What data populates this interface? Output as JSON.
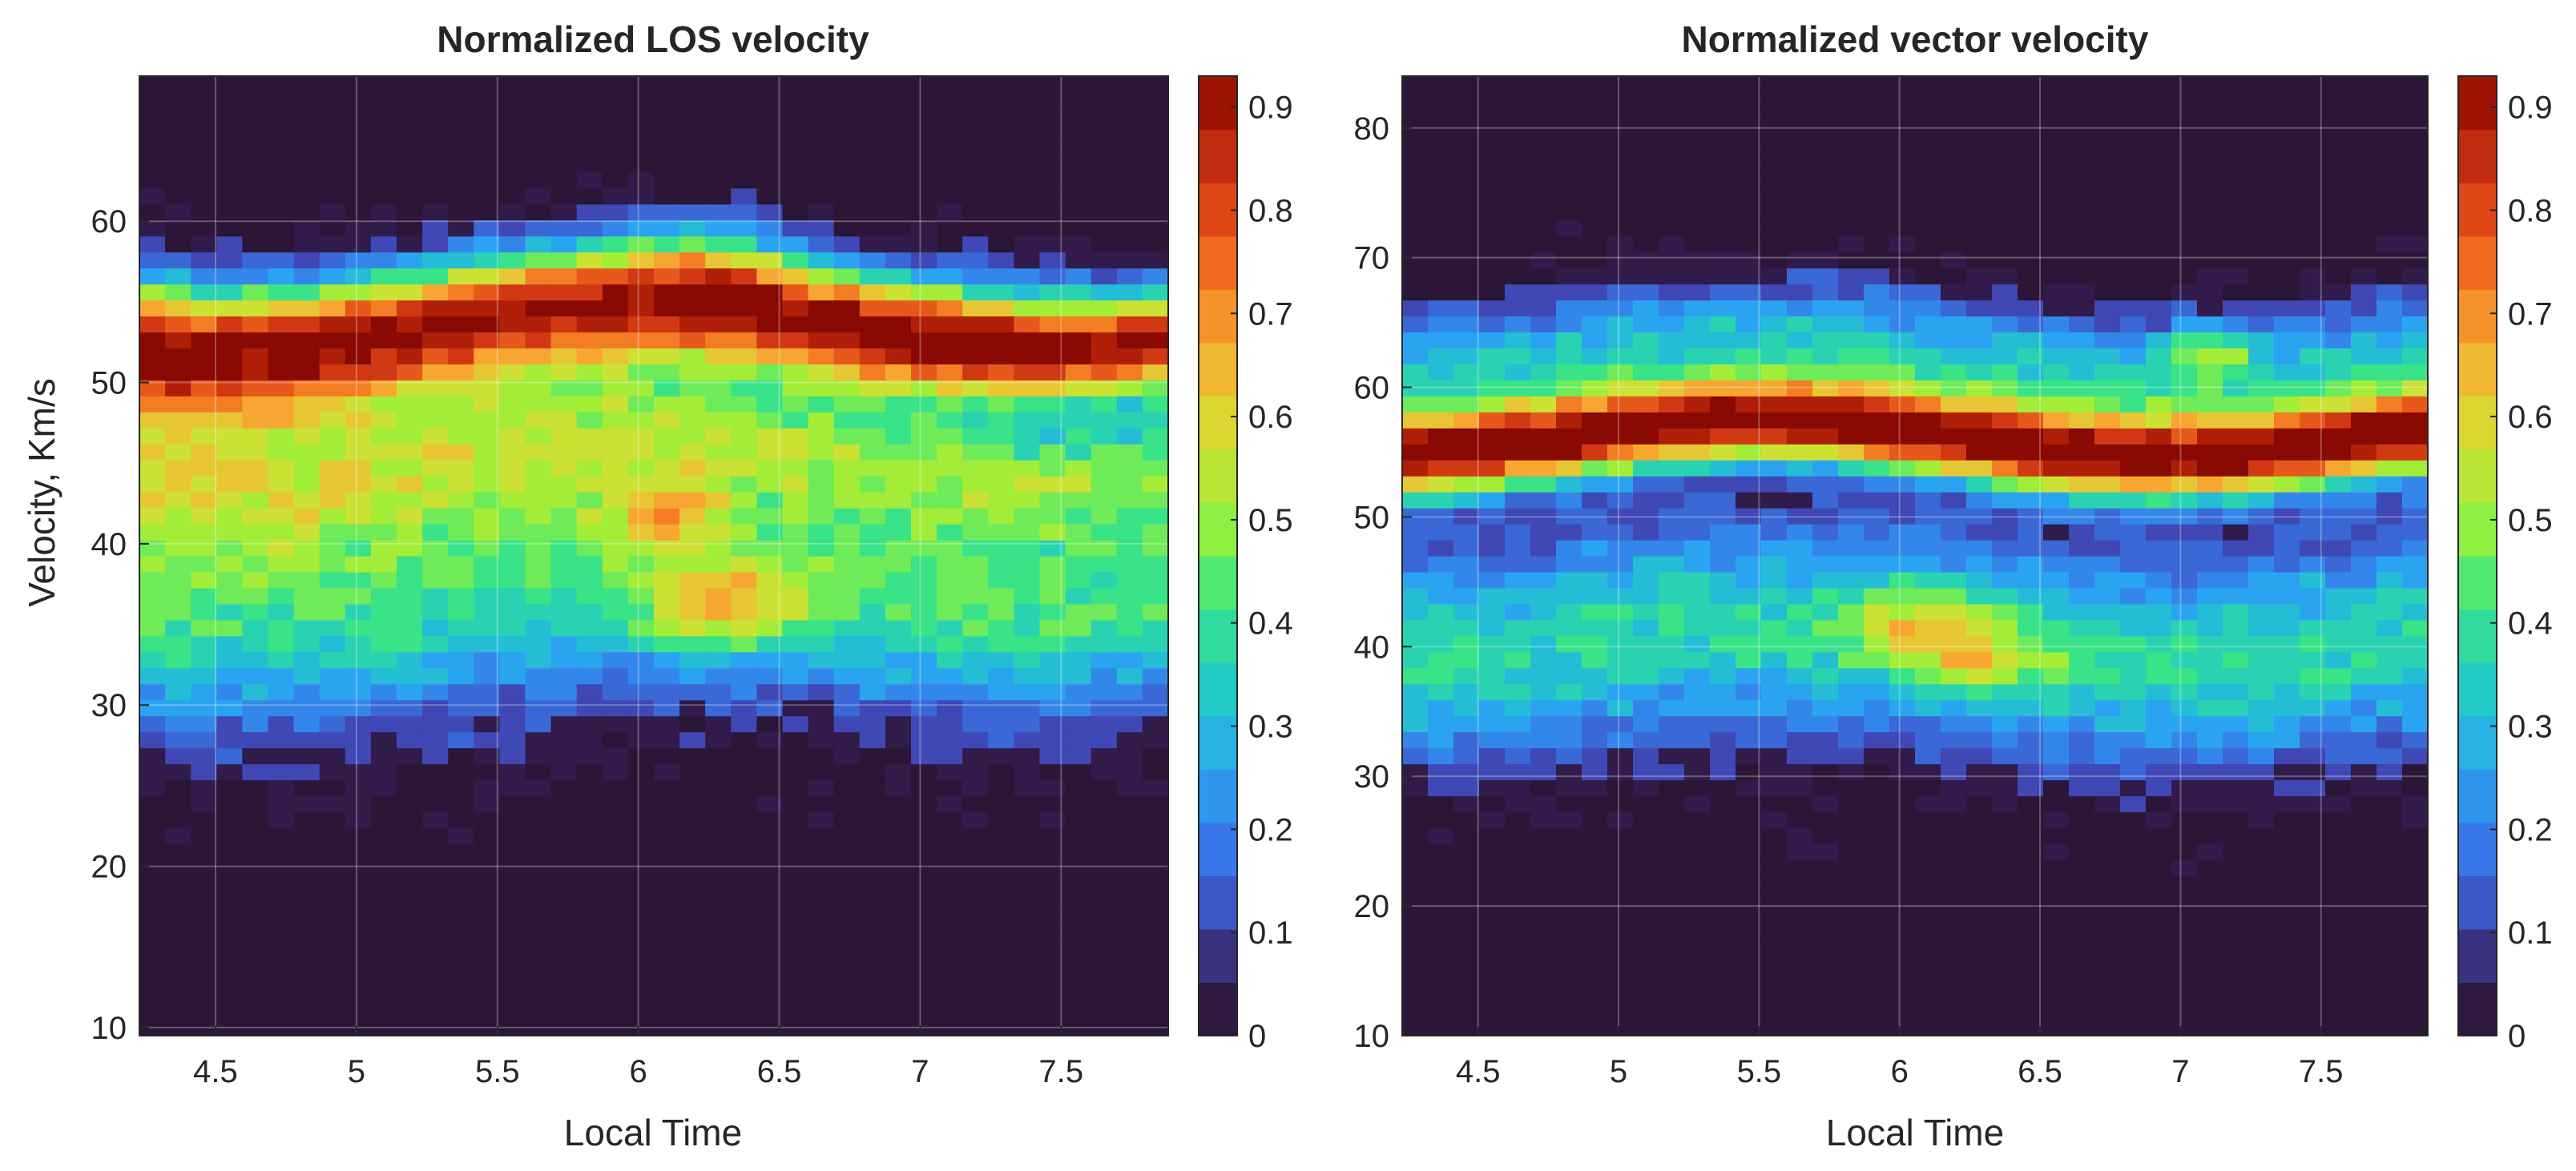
{
  "chart_data": [
    {
      "type": "heatmap",
      "style": "filled-contour",
      "title": "Normalized LOS velocity",
      "xlabel": "Local Time",
      "ylabel": "Velocity, Km/s",
      "xlim": [
        4.23,
        7.88
      ],
      "ylim": [
        9.5,
        69
      ],
      "xticks": [
        4.5,
        5,
        5.5,
        6,
        6.5,
        7,
        7.5
      ],
      "xtick_labels": [
        "4.5",
        "5",
        "5.5",
        "6",
        "6.5",
        "7",
        "7.5"
      ],
      "yticks": [
        10,
        20,
        30,
        40,
        50,
        60
      ],
      "ytick_labels": [
        "10",
        "20",
        "30",
        "40",
        "50",
        "60"
      ],
      "colorbar": {
        "range": [
          0,
          0.93
        ],
        "ticks": [
          0,
          0.1,
          0.2,
          0.3,
          0.4,
          0.5,
          0.6,
          0.7,
          0.8,
          0.9
        ],
        "tick_labels": [
          "0",
          "0.1",
          "0.2",
          "0.3",
          "0.4",
          "0.5",
          "0.6",
          "0.7",
          "0.8",
          "0.9"
        ]
      },
      "grid": true,
      "bands": [
        {
          "v": 53.5,
          "sigma": 4.2,
          "amp": 0.9
        },
        {
          "v": 46,
          "sigma": 5,
          "amp": 0.35
        },
        {
          "v": 38,
          "sigma": 10,
          "amp": 0.45
        }
      ],
      "features": [
        {
          "t": 6.3,
          "v": 36,
          "sigma_t": 0.3,
          "sigma_v": 3,
          "amp": 0.3
        },
        {
          "t": 6.1,
          "v": 42,
          "sigma_t": 0.2,
          "sigma_v": 2,
          "amp": 0.25
        },
        {
          "t": 6.3,
          "v": 58,
          "sigma_t": 0.3,
          "sigma_v": 3,
          "amp": 0.2
        },
        {
          "t": 7.1,
          "v": 55,
          "sigma_t": 0.6,
          "sigma_v": 3,
          "amp": 0.15
        }
      ],
      "bands_width_change": -0.25,
      "lower_cutoff": {
        "center_v": 24,
        "width": 2.5
      }
    },
    {
      "type": "heatmap",
      "style": "filled-contour",
      "title": "Normalized vector velocity",
      "xlabel": "Local Time",
      "ylabel": "",
      "xlim": [
        4.23,
        7.88
      ],
      "ylim": [
        10,
        84
      ],
      "xticks": [
        4.5,
        5,
        5.5,
        6,
        6.5,
        7,
        7.5
      ],
      "xtick_labels": [
        "4.5",
        "5",
        "5.5",
        "6",
        "6.5",
        "7",
        "7.5"
      ],
      "yticks": [
        10,
        20,
        30,
        40,
        50,
        60,
        70,
        80
      ],
      "ytick_labels": [
        "10",
        "20",
        "30",
        "40",
        "50",
        "60",
        "70",
        "80"
      ],
      "colorbar": {
        "range": [
          0,
          0.93
        ],
        "ticks": [
          0,
          0.1,
          0.2,
          0.3,
          0.4,
          0.5,
          0.6,
          0.7,
          0.8,
          0.9
        ],
        "tick_labels": [
          "0",
          "0.1",
          "0.2",
          "0.3",
          "0.4",
          "0.5",
          "0.6",
          "0.7",
          "0.8",
          "0.9"
        ]
      },
      "grid": true,
      "bands": [
        {
          "v": 56,
          "sigma": 3.2,
          "amp": 0.92
        },
        {
          "v": 62,
          "sigma": 5,
          "amp": 0.35
        },
        {
          "v": 40,
          "sigma": 9,
          "amp": 0.4
        }
      ],
      "features": [
        {
          "t": 6.1,
          "v": 42,
          "sigma_t": 0.3,
          "sigma_v": 3,
          "amp": 0.25
        },
        {
          "t": 6.3,
          "v": 39,
          "sigma_t": 0.3,
          "sigma_v": 2,
          "amp": 0.2
        },
        {
          "t": 7.1,
          "v": 63,
          "sigma_t": 0.15,
          "sigma_v": 2,
          "amp": 0.25
        }
      ],
      "bands_width_change": 0,
      "lower_cutoff": {
        "center_v": 26,
        "width": 2.5
      }
    }
  ]
}
